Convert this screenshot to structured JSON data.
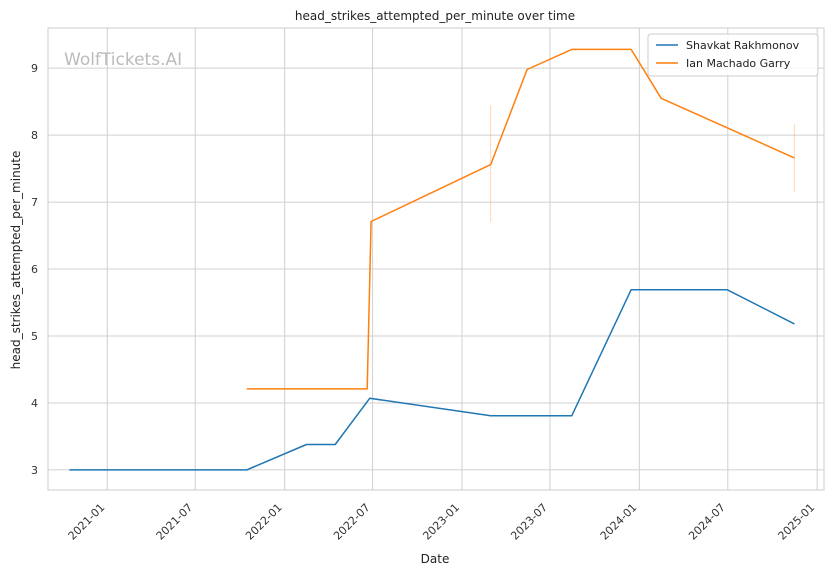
{
  "watermark": "WolfTickets.AI",
  "colors": {
    "grid": "#d0d0d0",
    "frame": "#cccccc",
    "series0": "#1f77b4",
    "series1": "#ff7f0e"
  },
  "chart_data": {
    "type": "line",
    "title": "head_strikes_attempted_per_minute over time",
    "xlabel": "Date",
    "ylabel": "head_strikes_attempted_per_minute",
    "xlim": [
      "2020-09-01",
      "2025-01-15"
    ],
    "ylim": [
      2.7,
      9.6
    ],
    "xticks": [
      "2021-01",
      "2021-07",
      "2022-01",
      "2022-07",
      "2023-01",
      "2023-07",
      "2024-01",
      "2024-07",
      "2025-01"
    ],
    "xtick_dates": [
      "2021-01-01",
      "2021-07-01",
      "2022-01-01",
      "2022-07-01",
      "2023-01-01",
      "2023-07-01",
      "2024-01-01",
      "2024-07-01",
      "2025-01-01"
    ],
    "yticks": [
      3,
      4,
      5,
      6,
      7,
      8,
      9
    ],
    "grid": true,
    "legend_position": "top-right",
    "series": [
      {
        "name": "Shavkat Rakhmonov",
        "color": "#1f77b4",
        "points": [
          [
            "2020-10-15",
            3.0
          ],
          [
            "2021-10-15",
            3.0
          ],
          [
            "2022-02-15",
            3.38
          ],
          [
            "2022-04-15",
            3.38
          ],
          [
            "2022-06-25",
            4.07
          ],
          [
            "2023-03-01",
            3.81
          ],
          [
            "2023-08-15",
            3.81
          ],
          [
            "2023-12-15",
            5.69
          ],
          [
            "2024-06-30",
            5.69
          ],
          [
            "2024-11-15",
            5.18
          ]
        ]
      },
      {
        "name": "Ian Machado Garry",
        "color": "#ff7f0e",
        "points": [
          [
            "2021-10-15",
            4.21
          ],
          [
            "2022-06-20",
            4.21
          ],
          [
            "2022-06-28",
            6.71
          ],
          [
            "2023-03-01",
            7.56
          ],
          [
            "2023-05-15",
            8.98
          ],
          [
            "2023-08-15",
            9.28
          ],
          [
            "2023-12-15",
            9.28
          ],
          [
            "2024-02-15",
            8.55
          ],
          [
            "2024-11-15",
            7.66
          ]
        ],
        "error_bars": [
          {
            "x": "2023-03-01",
            "low": 6.7,
            "high": 8.45
          },
          {
            "x": "2024-11-15",
            "low": 7.15,
            "high": 8.17
          }
        ]
      }
    ]
  }
}
